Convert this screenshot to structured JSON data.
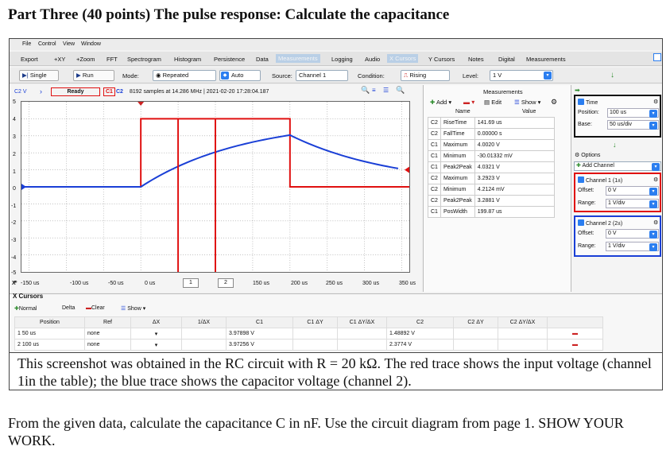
{
  "heading": "Part Three (40 points) The pulse response: Calculate the capacitance",
  "menu": [
    "File",
    "Control",
    "View",
    "Window"
  ],
  "toolbar": [
    "Export",
    "+XY",
    "+Zoom",
    "FFT",
    "Spectrogram",
    "Histogram",
    "Persistence",
    "Data",
    "Measurements",
    "Logging",
    "Audio",
    "X Cursors",
    "Y Cursors",
    "Notes",
    "Digital",
    "Measurements"
  ],
  "controls": {
    "single": "Single",
    "run": "Run",
    "mode_label": "Mode:",
    "mode_value": "Repeated",
    "auto": "Auto",
    "source_label": "Source:",
    "source_value": "Channel 1",
    "condition_label": "Condition:",
    "condition_value": "Rising",
    "level_label": "Level:",
    "level_value": "1 V"
  },
  "status": {
    "c2v": "C2 V",
    "ready": "Ready",
    "c1": "C1",
    "c2": "C2",
    "info": "8192 samples at 14.286 MHz | 2021-02-20 17:28:04.187"
  },
  "plot": {
    "y_ticks": [
      "5",
      "4",
      "3",
      "2",
      "1",
      "0",
      "-1",
      "-2",
      "-3",
      "-4",
      "-5"
    ],
    "x_axis_prefix": "X",
    "x_ticks": [
      "-150 us",
      "-100 us",
      "-50 us",
      "0 us",
      "1",
      "2",
      "150 us",
      "200 us",
      "250 us",
      "300 us",
      "350 us"
    ],
    "x_label": "X Cursors",
    "colors": {
      "ch1": "#e01010",
      "ch2": "#1a3fd6",
      "cursor": "#e01010"
    }
  },
  "measurements": {
    "title": "Measurements",
    "add": "Add",
    "edit": "Edit",
    "show": "Show",
    "headers": [
      "Name",
      "Value"
    ],
    "rows": [
      [
        "C2",
        "RiseTime",
        "141.69 us"
      ],
      [
        "C2",
        "FallTime",
        "0.00000 s"
      ],
      [
        "C1",
        "Maximum",
        "4.0020 V"
      ],
      [
        "C1",
        "Minimum",
        "-30.01332 mV"
      ],
      [
        "C1",
        "Peak2Peak",
        "4.0321 V"
      ],
      [
        "C2",
        "Maximum",
        "3.2923 V"
      ],
      [
        "C2",
        "Minimum",
        "4.2124 mV"
      ],
      [
        "C2",
        "Peak2Peak",
        "3.2881 V"
      ],
      [
        "C1",
        "PosWidth",
        "199.87 us"
      ]
    ]
  },
  "side": {
    "time": "Time",
    "position_label": "Position:",
    "position_value": "100 us",
    "base_label": "Base:",
    "base_value": "50 us/div",
    "options": "Options",
    "add_channel": "Add Channel",
    "ch1_title": "Channel 1 (1±)",
    "ch1_offset_label": "Offset:",
    "ch1_offset": "0 V",
    "ch1_range_label": "Range:",
    "ch1_range": "1 V/div",
    "ch2_title": "Channel 2 (2±)",
    "ch2_offset_label": "Offset:",
    "ch2_offset": "0 V",
    "ch2_range_label": "Range:",
    "ch2_range": "1 V/div"
  },
  "cursors": {
    "normal": "Normal",
    "delta": "Delta",
    "clear": "Clear",
    "show": "Show",
    "headers": [
      "Position",
      "Ref",
      "ΔX",
      "1/ΔX",
      "C1",
      "C1 ΔY",
      "C1 ΔY/ΔX",
      "C2",
      "C2 ΔY",
      "C2 ΔY/ΔX"
    ],
    "rows": [
      {
        "index": "1",
        "position": "50 us",
        "ref": "none",
        "c1": "3.97898 V",
        "c2": "1.48892 V"
      },
      {
        "index": "2",
        "position": "100 us",
        "ref": "none",
        "c1": "3.97256 V",
        "c2": "2.3774 V"
      }
    ]
  },
  "caption": "This screenshot was obtained in the RC circuit with R = 20 kΩ. The red trace shows the input voltage (channel 1in the table); the blue trace shows the capacitor voltage (channel 2).",
  "question": "From the given data, calculate the capacitance C in nF. Use the circuit diagram from page 1. SHOW YOUR WORK."
}
